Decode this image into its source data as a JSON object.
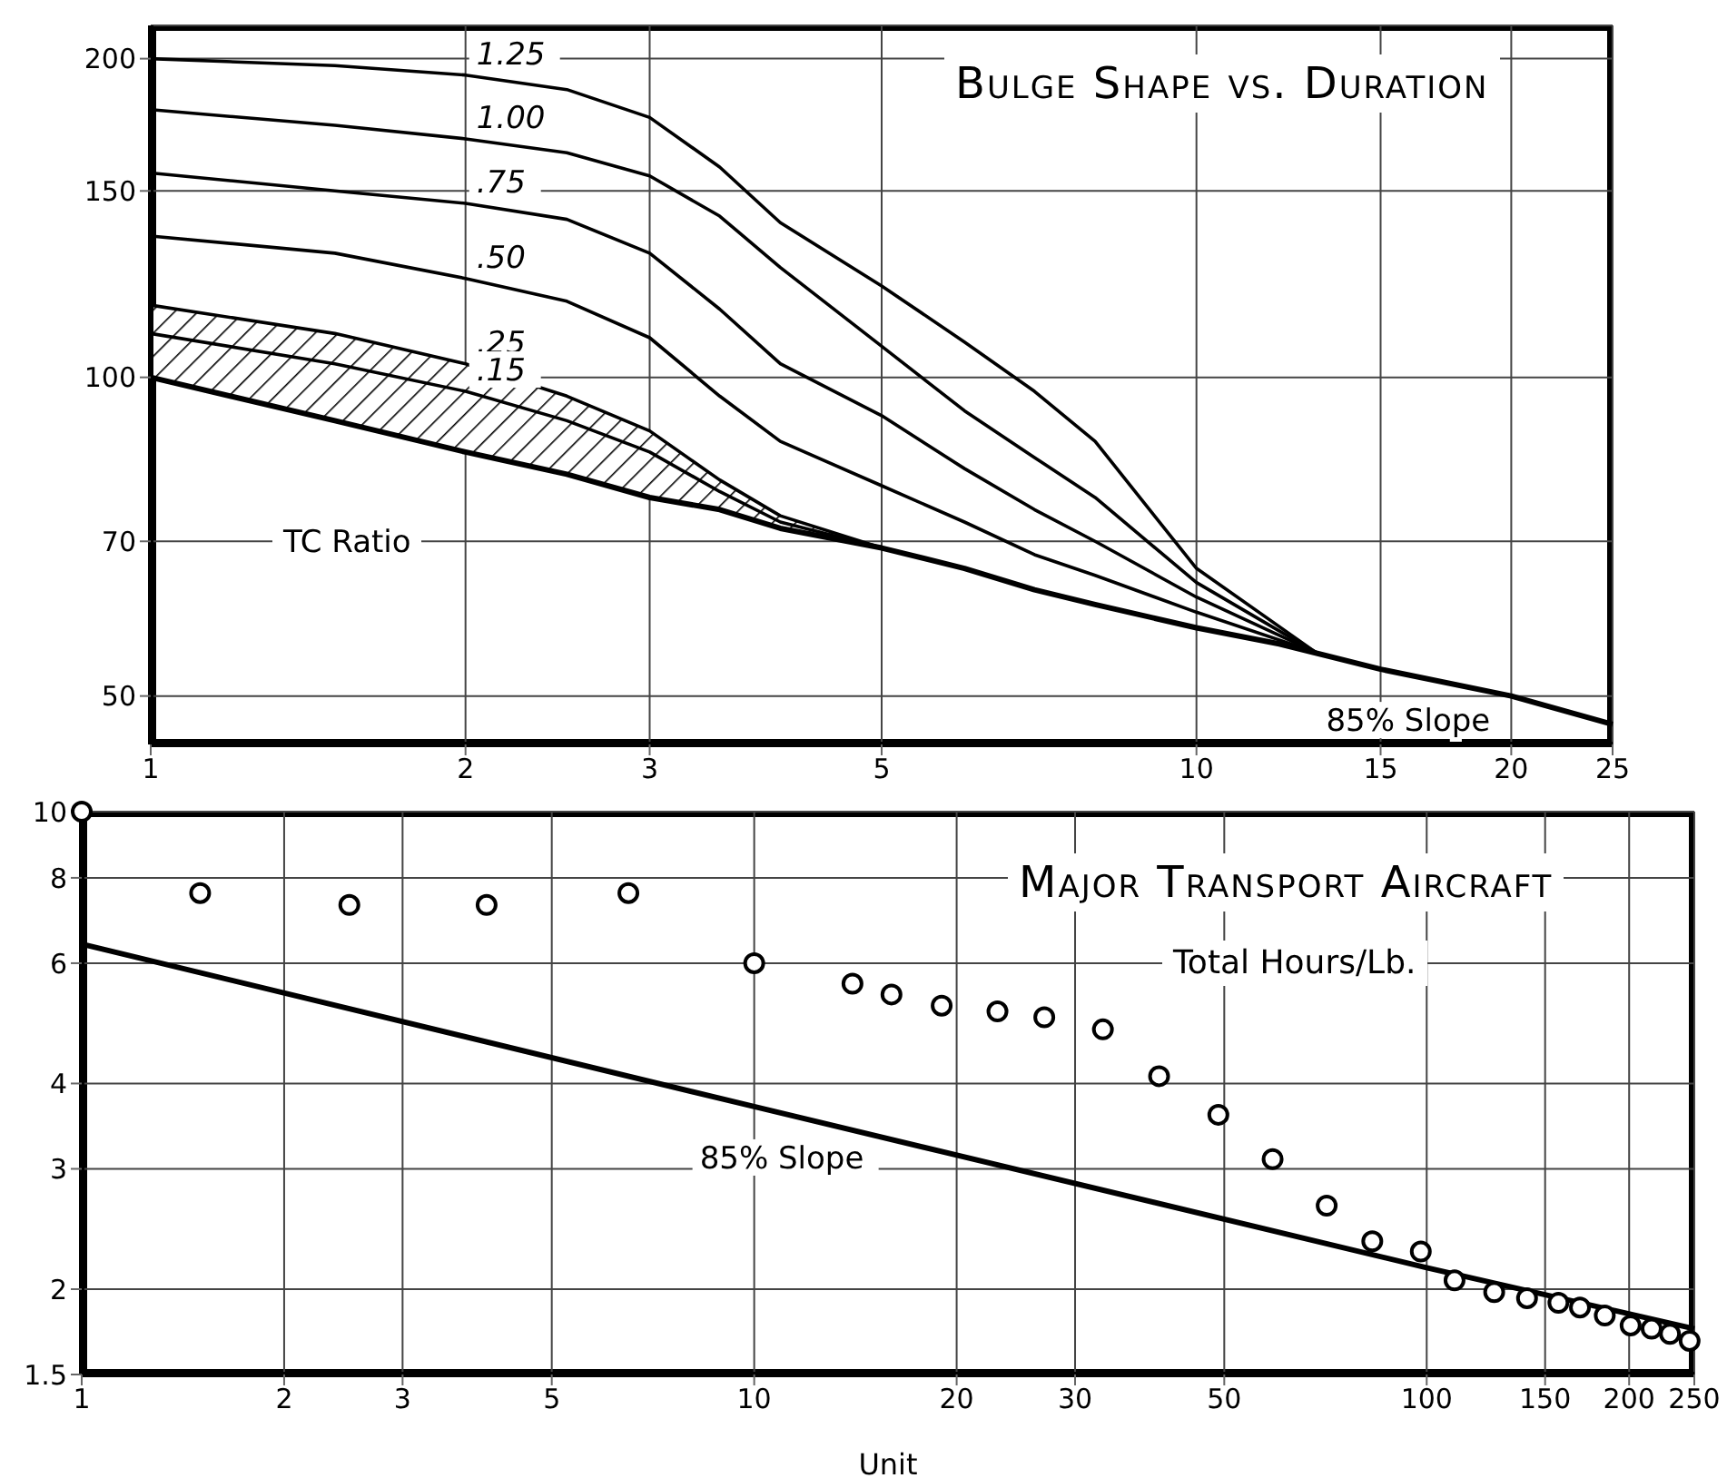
{
  "chart_data": [
    {
      "type": "line",
      "title": "Bulge Shape vs. Duration",
      "log": "xy",
      "grid": true,
      "xlim": [
        1,
        25
      ],
      "ylim": [
        45,
        215
      ],
      "xticks": [
        1,
        2,
        3,
        5,
        10,
        15,
        20,
        25
      ],
      "yticks": [
        50,
        70,
        100,
        150,
        200
      ],
      "annotations": [
        "TC Ratio"
      ],
      "series": [
        {
          "name": "1.25",
          "color": "#000000",
          "x": [
            1,
            1.5,
            2,
            2.5,
            3,
            3.5,
            4,
            5,
            6,
            7,
            8,
            10,
            13
          ],
          "values": [
            200,
            197,
            193,
            187,
            176,
            158,
            140,
            122,
            108,
            97,
            87,
            66,
            55
          ]
        },
        {
          "name": "1.00",
          "color": "#000000",
          "x": [
            1,
            1.5,
            2,
            2.5,
            3,
            3.5,
            4,
            5,
            6,
            7,
            8,
            10,
            13
          ],
          "values": [
            179,
            173,
            168,
            163,
            155,
            142,
            127,
            107,
            93,
            84,
            77,
            64,
            55
          ]
        },
        {
          "name": ".75",
          "color": "#000000",
          "x": [
            1,
            1.5,
            2,
            2.5,
            3,
            3.5,
            4,
            5,
            6,
            7,
            8,
            10,
            13
          ],
          "values": [
            156,
            150,
            146,
            141,
            131,
            116,
            103,
            92,
            82,
            75,
            70,
            62,
            55
          ]
        },
        {
          "name": ".50",
          "color": "#000000",
          "x": [
            1,
            1.5,
            2,
            2.5,
            3,
            3.5,
            4,
            5,
            6,
            7,
            8,
            10,
            13
          ],
          "values": [
            136,
            131,
            124,
            118,
            109,
            96,
            87,
            79,
            73,
            68,
            65,
            60,
            55
          ]
        },
        {
          "name": ".25",
          "color": "#000000",
          "x": [
            1,
            1.5,
            2,
            2.5,
            3,
            3.5,
            4,
            5
          ],
          "values": [
            117,
            110,
            103,
            96,
            89,
            80,
            74,
            69
          ]
        },
        {
          "name": ".15",
          "color": "#000000",
          "x": [
            1,
            1.5,
            2,
            2.5,
            3,
            3.5,
            4,
            5
          ],
          "values": [
            110,
            103,
            97,
            91,
            85,
            78,
            73,
            69
          ],
          "lower": [
            100,
            91,
            85,
            81,
            77,
            75,
            72,
            69
          ],
          "upper": [
            117,
            110,
            103,
            96,
            89,
            80,
            74,
            69
          ]
        },
        {
          "name": "85% Slope",
          "color": "#000000",
          "x": [
            1,
            1.5,
            2,
            2.5,
            3,
            3.5,
            4,
            5,
            6,
            7,
            8,
            10,
            12,
            15,
            20,
            25
          ],
          "values": [
            100,
            91,
            85,
            81,
            77,
            75,
            72,
            69,
            66,
            63,
            61,
            58,
            56,
            53,
            50,
            47
          ]
        }
      ]
    },
    {
      "type": "scatter",
      "title": "Major Transport Aircraft",
      "subtitle": "Total Hours/Lb.",
      "xlabel": "Unit",
      "log": "xy",
      "grid": true,
      "xlim": [
        1,
        250
      ],
      "ylim": [
        1.5,
        10
      ],
      "xticks": [
        1,
        2,
        3,
        5,
        10,
        20,
        30,
        50,
        100,
        150,
        200,
        250
      ],
      "yticks": [
        1.5,
        2,
        3,
        4,
        6,
        8,
        10
      ],
      "series": [
        {
          "marker": "circle",
          "color": "#000000",
          "x": [
            1,
            1.5,
            2.5,
            4,
            6.5,
            10,
            14,
            16,
            19,
            23,
            27,
            33,
            40,
            49,
            59,
            71,
            83,
            98,
            110,
            126,
            141,
            157,
            169,
            184,
            201,
            216,
            230,
            246
          ],
          "values": [
            10,
            7.6,
            7.3,
            7.3,
            7.6,
            6,
            5.6,
            5.4,
            5.2,
            5.1,
            5,
            4.8,
            4.1,
            3.6,
            3.1,
            2.65,
            2.35,
            2.27,
            2.06,
            1.98,
            1.94,
            1.91,
            1.88,
            1.83,
            1.77,
            1.75,
            1.72,
            1.68
          ]
        },
        {
          "type": "line",
          "marker": "none",
          "name": "85% Slope",
          "color": "#000000",
          "x": [
            1,
            10,
            100,
            250
          ],
          "values": [
            6.4,
            3.7,
            2.15,
            1.75
          ]
        }
      ]
    }
  ]
}
